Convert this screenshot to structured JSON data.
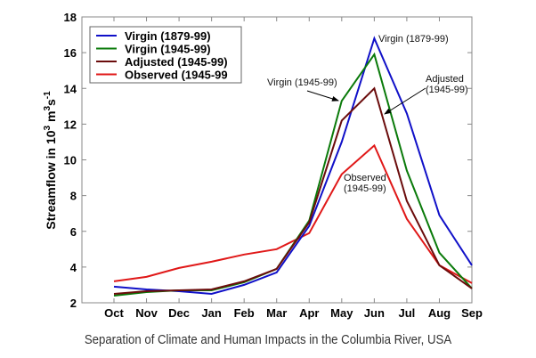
{
  "chart_data": {
    "type": "line",
    "title": "",
    "xlabel": "",
    "ylabel": "Streamflow in 10^3 m^3 s^-1",
    "ylabel_parts": {
      "base": "Streamflow in 10",
      "sup1": "3",
      "mid": " m",
      "sup2": "3",
      "unit": "s",
      "sup3": "-1"
    },
    "categories": [
      "Oct",
      "Nov",
      "Dec",
      "Jan",
      "Feb",
      "Mar",
      "Apr",
      "May",
      "Jun",
      "Jul",
      "Aug",
      "Sep"
    ],
    "ylim": [
      2,
      18
    ],
    "yticks": [
      2,
      4,
      6,
      8,
      10,
      12,
      14,
      16,
      18
    ],
    "grid": false,
    "legend_position": "top-left",
    "series": [
      {
        "name": "Virgin (1879-99)",
        "color": "#1010c8",
        "values": [
          2.9,
          2.75,
          2.65,
          2.5,
          3.0,
          3.7,
          6.3,
          11.0,
          16.8,
          12.6,
          6.9,
          4.1
        ]
      },
      {
        "name": "Virgin (1945-99)",
        "color": "#0a7a0a",
        "values": [
          2.4,
          2.6,
          2.7,
          2.7,
          3.15,
          3.9,
          6.6,
          13.3,
          15.9,
          9.4,
          4.8,
          2.8
        ]
      },
      {
        "name": "Adjusted (1945-99)",
        "color": "#6b0c0c",
        "values": [
          2.5,
          2.65,
          2.7,
          2.75,
          3.2,
          3.9,
          6.5,
          12.2,
          14.0,
          7.7,
          4.1,
          2.8
        ]
      },
      {
        "name": "Observed (1945-99",
        "color": "#e01818",
        "values": [
          3.2,
          3.45,
          3.95,
          4.3,
          4.7,
          5.0,
          5.9,
          9.2,
          10.8,
          6.7,
          4.1,
          3.1
        ]
      }
    ],
    "annotations": [
      {
        "lines": [
          "Virgin (1879-99)"
        ],
        "series": 0
      },
      {
        "lines": [
          "Virgin (1945-99)"
        ],
        "series": 1,
        "arrow": true
      },
      {
        "lines": [
          "Adjusted",
          "(1945-99)"
        ],
        "series": 2,
        "arrow": true
      },
      {
        "lines": [
          "Observed",
          "(1945-99)"
        ],
        "series": 3
      }
    ]
  },
  "caption": "Separation of Climate and Human Impacts in the Columbia River, USA"
}
